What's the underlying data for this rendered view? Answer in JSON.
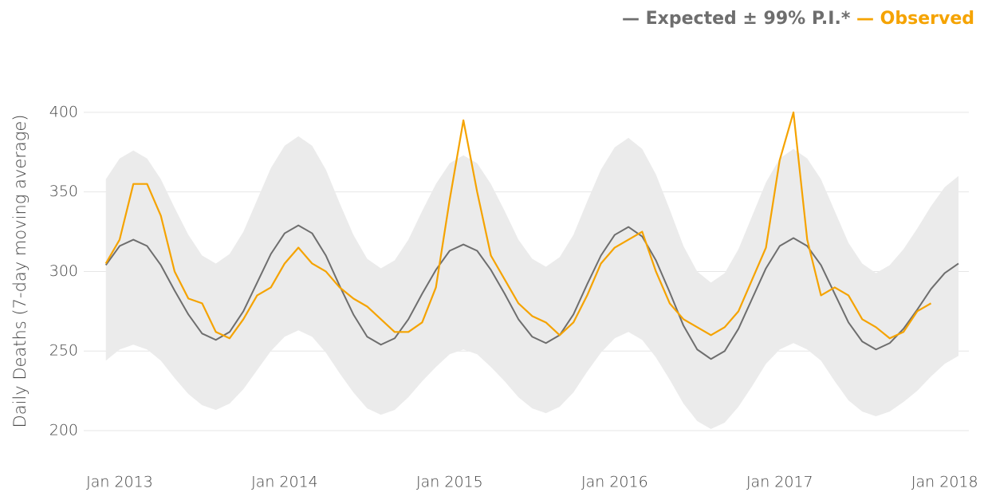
{
  "chart_data": {
    "type": "line",
    "y_label": "Daily Deaths (7-day moving average)",
    "x": [
      "2012-12",
      "2013-01",
      "2013-02",
      "2013-03",
      "2013-04",
      "2013-05",
      "2013-06",
      "2013-07",
      "2013-08",
      "2013-09",
      "2013-10",
      "2013-11",
      "2013-12",
      "2014-01",
      "2014-02",
      "2014-03",
      "2014-04",
      "2014-05",
      "2014-06",
      "2014-07",
      "2014-08",
      "2014-09",
      "2014-10",
      "2014-11",
      "2014-12",
      "2015-01",
      "2015-02",
      "2015-03",
      "2015-04",
      "2015-05",
      "2015-06",
      "2015-07",
      "2015-08",
      "2015-09",
      "2015-10",
      "2015-11",
      "2015-12",
      "2016-01",
      "2016-02",
      "2016-03",
      "2016-04",
      "2016-05",
      "2016-06",
      "2016-07",
      "2016-08",
      "2016-09",
      "2016-10",
      "2016-11",
      "2016-12",
      "2017-01",
      "2017-02",
      "2017-03",
      "2017-04",
      "2017-05",
      "2017-06",
      "2017-07",
      "2017-08",
      "2017-09",
      "2017-10",
      "2017-11",
      "2017-12",
      "2018-01",
      "2018-02"
    ],
    "xlim": [
      "2012-12",
      "2018-02"
    ],
    "xticks": [
      {
        "value": "2013-01",
        "label": "Jan 2013"
      },
      {
        "value": "2014-01",
        "label": "Jan 2014"
      },
      {
        "value": "2015-01",
        "label": "Jan 2015"
      },
      {
        "value": "2016-01",
        "label": "Jan 2016"
      },
      {
        "value": "2017-01",
        "label": "Jan 2017"
      },
      {
        "value": "2018-01",
        "label": "Jan 2018"
      }
    ],
    "ylim": [
      195,
      425
    ],
    "yticks": [
      200,
      250,
      300,
      350,
      400
    ],
    "grid": true,
    "legend": "top-right",
    "band": {
      "color": "#ebebeb",
      "upper": [
        358,
        371,
        376,
        371,
        358,
        340,
        323,
        310,
        305,
        311,
        325,
        345,
        365,
        379,
        385,
        379,
        364,
        343,
        323,
        308,
        302,
        307,
        320,
        338,
        355,
        368,
        373,
        368,
        355,
        338,
        320,
        308,
        303,
        309,
        323,
        344,
        364,
        378,
        384,
        377,
        361,
        339,
        316,
        300,
        293,
        299,
        314,
        335,
        356,
        371,
        377,
        371,
        358,
        338,
        318,
        305,
        299,
        304,
        314,
        327,
        341,
        353,
        360
      ],
      "lower": [
        244,
        251,
        254,
        251,
        244,
        233,
        223,
        216,
        213,
        217,
        226,
        238,
        250,
        259,
        263,
        259,
        249,
        236,
        224,
        214,
        210,
        213,
        221,
        231,
        240,
        248,
        251,
        248,
        240,
        231,
        221,
        214,
        211,
        215,
        224,
        237,
        249,
        258,
        262,
        257,
        246,
        232,
        217,
        206,
        201,
        205,
        215,
        228,
        242,
        251,
        255,
        251,
        244,
        231,
        219,
        212,
        209,
        212,
        218,
        225,
        234,
        242,
        247
      ]
    },
    "series": [
      {
        "name": "Expected ± 99% P.I.*",
        "color": "#6e6e6e",
        "values": [
          304,
          316,
          320,
          316,
          304,
          288,
          273,
          261,
          257,
          262,
          275,
          293,
          311,
          324,
          329,
          324,
          310,
          291,
          273,
          259,
          254,
          258,
          270,
          286,
          301,
          313,
          317,
          313,
          301,
          286,
          270,
          259,
          255,
          260,
          273,
          292,
          310,
          323,
          328,
          322,
          307,
          287,
          266,
          251,
          245,
          250,
          264,
          283,
          302,
          316,
          321,
          316,
          304,
          286,
          268,
          256,
          251,
          255,
          264,
          276,
          289,
          299,
          305
        ]
      },
      {
        "name": "Observed",
        "color": "#f5a300",
        "values": [
          305,
          320,
          355,
          355,
          335,
          300,
          283,
          280,
          262,
          258,
          270,
          285,
          290,
          305,
          315,
          305,
          300,
          290,
          283,
          278,
          270,
          262,
          262,
          268,
          290,
          345,
          395,
          350,
          310,
          295,
          280,
          272,
          268,
          260,
          268,
          285,
          305,
          315,
          320,
          325,
          300,
          280,
          270,
          265,
          260,
          265,
          275,
          295,
          315,
          370,
          400,
          320,
          285,
          290,
          285,
          270,
          265,
          258,
          262,
          275,
          280,
          null,
          null
        ]
      }
    ]
  }
}
